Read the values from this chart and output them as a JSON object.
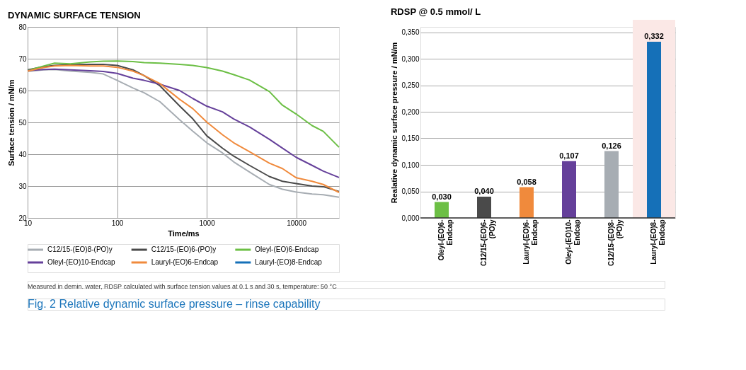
{
  "chart_data": [
    {
      "type": "line",
      "title": "DYNAMIC SURFACE TENSION",
      "xlabel": "Time/ms",
      "ylabel": "Surface tension / mN/m",
      "x": [
        10,
        15,
        20,
        30,
        50,
        70,
        100,
        150,
        200,
        300,
        500,
        700,
        1000,
        1500,
        2000,
        3000,
        5000,
        7000,
        10000,
        15000,
        20000,
        30000
      ],
      "series": [
        {
          "name": "C12/15-(EO)8-(PO)y",
          "color": "#a7adb3",
          "values": [
            66.0,
            66.5,
            66.6,
            66.1,
            65.7,
            65.2,
            63.2,
            60.8,
            59.3,
            56.5,
            50.8,
            47.2,
            43.6,
            40.4,
            37.6,
            34.4,
            30.5,
            29.0,
            28.1,
            27.5,
            27.3,
            26.5
          ]
        },
        {
          "name": "C12/15-(EO)6-(PO)y",
          "color": "#4a4a4a",
          "values": [
            66.5,
            67.5,
            67.9,
            68.1,
            68.2,
            68.2,
            67.9,
            66.5,
            64.7,
            61.5,
            55.1,
            51.1,
            45.8,
            41.9,
            39.4,
            36.5,
            33.0,
            31.5,
            30.8,
            30.0,
            29.8,
            28.3
          ]
        },
        {
          "name": "Oleyl-(EO)6-Endcap",
          "color": "#6cbf45",
          "values": [
            66.3,
            67.7,
            68.6,
            68.4,
            69.0,
            69.2,
            69.3,
            69.1,
            68.8,
            68.6,
            68.2,
            67.9,
            67.2,
            66.1,
            65.0,
            63.3,
            59.7,
            55.4,
            52.6,
            49.0,
            47.2,
            42.2
          ]
        },
        {
          "name": "Oleyl-(EO)10-Endcap",
          "color": "#65409a",
          "values": [
            66.3,
            66.6,
            66.7,
            66.5,
            66.2,
            66.0,
            65.4,
            63.9,
            63.2,
            62.0,
            60.0,
            57.5,
            55.1,
            53.3,
            51.1,
            48.6,
            44.7,
            41.9,
            39.0,
            36.5,
            34.7,
            32.7
          ]
        },
        {
          "name": "Lauryl-(EO)6-Endcap",
          "color": "#f08a3c",
          "values": [
            66.1,
            67.2,
            67.7,
            67.9,
            67.7,
            67.7,
            67.3,
            66.1,
            64.7,
            62.2,
            57.2,
            54.3,
            50.1,
            46.1,
            43.6,
            40.8,
            37.2,
            35.5,
            32.6,
            31.5,
            30.5,
            28.0
          ]
        },
        {
          "name": "Lauryl-(EO)8-Endcap",
          "color": "#1570b8",
          "values": [
            null,
            null,
            null,
            null,
            null,
            null,
            null,
            null,
            null,
            null,
            null,
            null,
            null,
            null,
            null,
            null,
            null,
            null,
            null,
            null,
            null,
            null
          ]
        }
      ],
      "log": "x",
      "xlim": [
        10,
        30000
      ],
      "xticks": [
        10,
        100,
        1000,
        10000
      ],
      "ylim": [
        20,
        80
      ],
      "yticks": [
        20,
        30,
        40,
        50,
        60,
        70,
        80
      ],
      "grid": true,
      "legend": "bottom",
      "annotations": [
        "Measured in demin. water, RDSP calculated with surface tension values at 0.1 s and 30 s, temperature: 50 °C",
        "Fig. 2  Relative dynamic surface pressure – rinse capability"
      ]
    },
    {
      "type": "bar",
      "title": "RDSP @ 0.5 mmol/ L",
      "ylabel": "Realative dynamic surface pressure / mN/m",
      "categories": [
        "Oleyl-(EO)6-Endcap",
        "C12/15-(EO)6-(PO)y",
        "Lauryl-(EO)6-Endcap",
        "Oleyl-(EO)10-Endcap",
        "C12/15-(EO)8-(PO)y",
        "Lauryl-(EO)8-Endcap"
      ],
      "values": [
        0.03,
        0.04,
        0.058,
        0.107,
        0.126,
        0.332
      ],
      "colors": [
        "#6cbf45",
        "#4a4a4a",
        "#f08a3c",
        "#65409a",
        "#a7adb3",
        "#1570b8"
      ],
      "value_labels": [
        "0,030",
        "0,040",
        "0,058",
        "0,107",
        "0,126",
        "0,332"
      ],
      "ylim": [
        0,
        0.36
      ],
      "yticks": [
        {
          "value": 0,
          "label": "0,000"
        },
        {
          "value": 0.05,
          "label": "0,050"
        },
        {
          "value": 0.1,
          "label": "0,100"
        },
        {
          "value": 0.15,
          "label": "0,150"
        },
        {
          "value": 0.2,
          "label": "0,200"
        },
        {
          "value": 0.25,
          "label": "0,250"
        },
        {
          "value": 0.3,
          "label": "0,300"
        },
        {
          "value": 0.35,
          "label": "0,350"
        }
      ],
      "grid": "y",
      "bands": [
        {
          "axis": "x",
          "from": "Lauryl-(EO)8-Endcap",
          "to": "Lauryl-(EO)8-Endcap",
          "color": "#fbe8e6"
        }
      ]
    }
  ]
}
